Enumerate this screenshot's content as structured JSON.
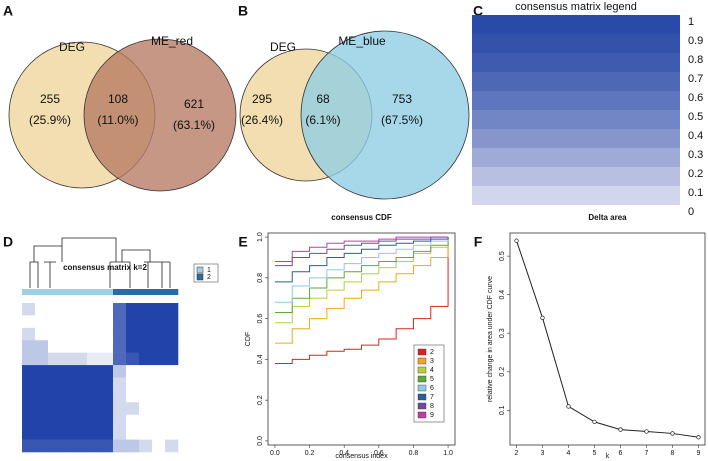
{
  "chart_data": [
    {
      "type": "venn",
      "panel": "A",
      "sets": [
        "DEG",
        "ME_red"
      ],
      "colors": [
        "#f3deb1",
        "#b57a62"
      ],
      "values": [
        255,
        108,
        621
      ],
      "percents": [
        25.9,
        11.0,
        63.1
      ],
      "percent_labels": [
        "(25.9%)",
        "(11.0%)",
        "(63.1%)"
      ]
    },
    {
      "type": "venn",
      "panel": "B",
      "sets": [
        "DEG",
        "ME_blue"
      ],
      "colors": [
        "#f3deb1",
        "#8ecde3"
      ],
      "values": [
        295,
        68,
        753
      ],
      "percents": [
        26.4,
        6.1,
        67.5
      ],
      "percent_labels": [
        "(26.4%)",
        "(6.1%)",
        "(67.5%)"
      ]
    },
    {
      "type": "colorbar",
      "panel": "C",
      "title": "consensus matrix legend",
      "ylim": [
        0,
        1
      ],
      "yticks": [
        1,
        0.9,
        0.8,
        0.7,
        0.6,
        0.5,
        0.4,
        0.3,
        0.2,
        0.1,
        0
      ],
      "colors": [
        "#2a4aa8",
        "#3552ab",
        "#3f5bb0",
        "#4e68b6",
        "#5e76bd",
        "#7285c4",
        "#8895cc",
        "#a0aad6",
        "#b8bfe1",
        "#d2d6ec"
      ]
    },
    {
      "type": "heatmap",
      "panel": "D",
      "title": "consensus matrix k=2",
      "legend": [
        "1",
        "2"
      ],
      "legend_colors": [
        "#9fd0e2",
        "#2a6aa6"
      ],
      "clusters": [
        1,
        1,
        1,
        1,
        1,
        1,
        1,
        2,
        2,
        2,
        2,
        2
      ],
      "matrix": [
        [
          0.2,
          0,
          0,
          0,
          0,
          0,
          0,
          0.8,
          1,
          1,
          1,
          1
        ],
        [
          0,
          0,
          0,
          0,
          0,
          0,
          0,
          0.8,
          1,
          1,
          1,
          1
        ],
        [
          0.2,
          0,
          0,
          0,
          0,
          0,
          0,
          0.8,
          1,
          1,
          1,
          1
        ],
        [
          0.3,
          0.3,
          0,
          0,
          0,
          0,
          0,
          0.8,
          1,
          1,
          1,
          1
        ],
        [
          0.3,
          0.3,
          0.2,
          0.2,
          0.2,
          0.1,
          0.1,
          0.8,
          0.9,
          1,
          1,
          1
        ],
        [
          1,
          1,
          1,
          1,
          1,
          1,
          1,
          0.3,
          0,
          0,
          0,
          0
        ],
        [
          1,
          1,
          1,
          1,
          1,
          1,
          1,
          0.2,
          0,
          0,
          0,
          0
        ],
        [
          1,
          1,
          1,
          1,
          1,
          1,
          1,
          0.2,
          0,
          0,
          0,
          0
        ],
        [
          1,
          1,
          1,
          1,
          1,
          1,
          1,
          0.2,
          0.2,
          0,
          0,
          0
        ],
        [
          1,
          1,
          1,
          1,
          1,
          1,
          1,
          0.2,
          0,
          0,
          0,
          0
        ],
        [
          1,
          1,
          1,
          1,
          1,
          1,
          1,
          0.2,
          0,
          0,
          0,
          0
        ],
        [
          0.9,
          0.9,
          0.9,
          0.9,
          0.9,
          0.9,
          0.9,
          0.3,
          0.3,
          0.2,
          0,
          0.2
        ]
      ]
    },
    {
      "type": "line",
      "step": true,
      "panel": "E",
      "title": "consensus CDF",
      "x_label": "consensus index",
      "y_label": "CDF",
      "x": [
        0,
        0.1,
        0.2,
        0.3,
        0.4,
        0.5,
        0.6,
        0.7,
        0.8,
        0.9,
        1.0
      ],
      "series": [
        {
          "name": "2",
          "color": "#d7261e",
          "values": [
            0.38,
            0.4,
            0.42,
            0.44,
            0.45,
            0.47,
            0.5,
            0.55,
            0.6,
            0.66,
            1.0
          ]
        },
        {
          "name": "3",
          "color": "#f0a818",
          "values": [
            0.48,
            0.55,
            0.6,
            0.65,
            0.7,
            0.74,
            0.78,
            0.82,
            0.86,
            0.9,
            1.0
          ]
        },
        {
          "name": "4",
          "color": "#b6d13a",
          "values": [
            0.58,
            0.66,
            0.7,
            0.74,
            0.78,
            0.82,
            0.85,
            0.88,
            0.92,
            0.95,
            1.0
          ]
        },
        {
          "name": "5",
          "color": "#5aab3c",
          "values": [
            0.63,
            0.7,
            0.75,
            0.8,
            0.83,
            0.86,
            0.88,
            0.9,
            0.93,
            0.96,
            1.0
          ]
        },
        {
          "name": "6",
          "color": "#8ecae6",
          "values": [
            0.68,
            0.76,
            0.8,
            0.84,
            0.87,
            0.9,
            0.92,
            0.94,
            0.96,
            0.98,
            1.0
          ]
        },
        {
          "name": "7",
          "color": "#2b5c9c",
          "values": [
            0.78,
            0.83,
            0.86,
            0.9,
            0.92,
            0.94,
            0.96,
            0.97,
            0.98,
            0.99,
            1.0
          ]
        },
        {
          "name": "8",
          "color": "#6b4d9d",
          "values": [
            0.86,
            0.9,
            0.92,
            0.94,
            0.96,
            0.97,
            0.98,
            0.99,
            0.99,
            1.0,
            1.0
          ]
        },
        {
          "name": "9",
          "color": "#c23ba2",
          "values": [
            0.88,
            0.93,
            0.95,
            0.97,
            0.98,
            0.98,
            0.99,
            1.0,
            1.0,
            1.0,
            1.0
          ]
        }
      ],
      "xlim": [
        -0.04,
        1.04
      ],
      "ylim": [
        -0.02,
        1.02
      ],
      "xticks": [
        {
          "value": 0,
          "label": "0.0"
        },
        {
          "value": 0.2,
          "label": "0.2"
        },
        {
          "value": 0.4,
          "label": "0.4"
        },
        {
          "value": 0.6,
          "label": "0.6"
        },
        {
          "value": 0.8,
          "label": "0.8"
        },
        {
          "value": 1,
          "label": "1.0"
        }
      ],
      "yticks": [
        {
          "value": 0,
          "label": "0.0"
        },
        {
          "value": 0.2,
          "label": "0.2"
        },
        {
          "value": 0.4,
          "label": "0.4"
        },
        {
          "value": 0.6,
          "label": "0.6"
        },
        {
          "value": 0.8,
          "label": "0.8"
        },
        {
          "value": 1,
          "label": "1.0"
        }
      ]
    },
    {
      "type": "line",
      "step": false,
      "markers": true,
      "panel": "F",
      "title": "Delta area",
      "x_label": "k",
      "y_label": "relative change in area under CDF curve",
      "x": [
        2,
        3,
        4,
        5,
        6,
        7,
        8,
        9
      ],
      "series": [
        {
          "color": "#222222",
          "values": [
            0.54,
            0.34,
            0.11,
            0.07,
            0.05,
            0.045,
            0.04,
            0.03
          ]
        }
      ],
      "xlim": [
        1.75,
        9.25
      ],
      "ylim": [
        0.01,
        0.56
      ],
      "xticks": [
        2,
        3,
        4,
        5,
        6,
        7,
        8,
        9
      ],
      "yticks": [
        0.1,
        0.2,
        0.3,
        0.4,
        0.5
      ]
    }
  ]
}
